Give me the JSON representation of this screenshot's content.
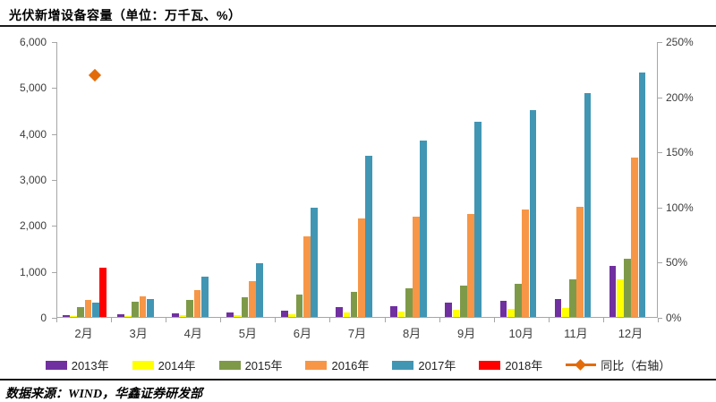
{
  "title": "光伏新增设备容量（单位：万千瓦、%）",
  "source": "数据来源：WIND，华鑫证券研发部",
  "chart_data": {
    "type": "bar",
    "title": "光伏新增设备容量（单位：万千瓦、%）",
    "categories": [
      "2月",
      "3月",
      "4月",
      "5月",
      "6月",
      "7月",
      "8月",
      "9月",
      "10月",
      "11月",
      "12月"
    ],
    "series": [
      {
        "name": "2013年",
        "color": "#7030A0",
        "values": [
          45,
          65,
          80,
          100,
          140,
          215,
          235,
          310,
          345,
          395,
          1120
        ]
      },
      {
        "name": "2014年",
        "color": "#FFFF00",
        "values": [
          20,
          25,
          30,
          35,
          65,
          100,
          110,
          150,
          175,
          195,
          815
        ]
      },
      {
        "name": "2015年",
        "color": "#7E9A49",
        "values": [
          215,
          325,
          370,
          435,
          490,
          555,
          620,
          685,
          720,
          815,
          1260
        ]
      },
      {
        "name": "2016年",
        "color": "#F79646",
        "values": [
          370,
          440,
          575,
          785,
          1745,
          2135,
          2185,
          2240,
          2330,
          2400,
          3460
        ]
      },
      {
        "name": "2017年",
        "color": "#4196B4",
        "values": [
          320,
          390,
          880,
          1175,
          2370,
          3505,
          3840,
          4245,
          4505,
          4880,
          5320
        ]
      },
      {
        "name": "2018年",
        "color": "#FF0000",
        "values": [
          1080,
          null,
          null,
          null,
          null,
          null,
          null,
          null,
          null,
          null,
          null
        ]
      }
    ],
    "line_series": {
      "name": "同比（右轴）",
      "color": "#E36C0A",
      "marker": "diamond",
      "axis": "right",
      "values": [
        220,
        null,
        null,
        null,
        null,
        null,
        null,
        null,
        null,
        null,
        null
      ],
      "point_slot_fraction": 0.68
    },
    "left_axis": {
      "min": 0,
      "max": 6000,
      "step": 1000,
      "tick_labels": [
        "0",
        "1,000",
        "2,000",
        "3,000",
        "4,000",
        "5,000",
        "6,000"
      ]
    },
    "right_axis": {
      "min": 0,
      "max": 250,
      "step": 50,
      "suffix": "%",
      "tick_labels": [
        "0%",
        "50%",
        "100%",
        "150%",
        "200%",
        "250%"
      ]
    },
    "grid": false,
    "legend_position": "bottom"
  }
}
